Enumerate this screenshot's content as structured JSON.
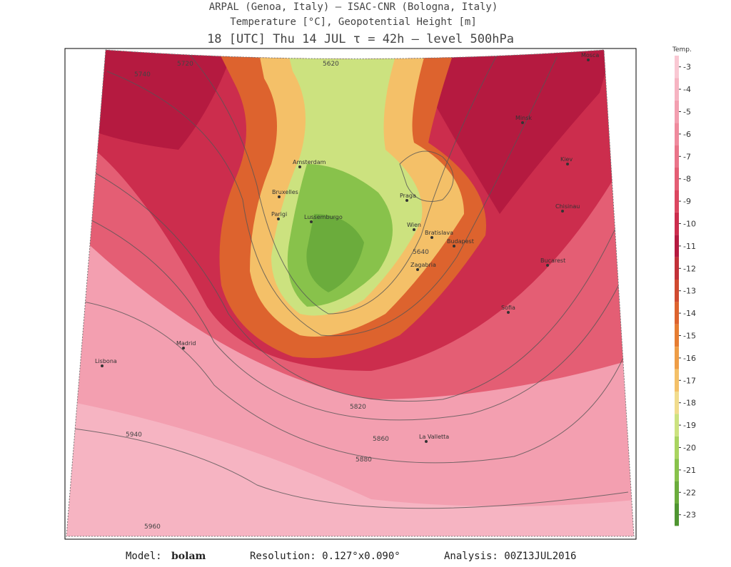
{
  "header": {
    "line1": "ARPAL (Genoa, Italy)  —  ISAC-CNR (Bologna, Italy)",
    "line2": "Temperature [°C], Geopotential Height [m]",
    "line3": "18 [UTC] Thu 14 JUL  τ = 42h  —  level 500hPa"
  },
  "colorbar": {
    "title": "Temp.",
    "levels": [
      {
        "value": -3,
        "color": "#f9c8d3"
      },
      {
        "value": -4,
        "color": "#f6b4c2"
      },
      {
        "value": -5,
        "color": "#f39fb0"
      },
      {
        "value": -6,
        "color": "#ef8a9d"
      },
      {
        "value": -7,
        "color": "#ea7489"
      },
      {
        "value": -8,
        "color": "#e45e74"
      },
      {
        "value": -9,
        "color": "#dc4660"
      },
      {
        "value": -10,
        "color": "#cc2d4d"
      },
      {
        "value": -11,
        "color": "#b51a40"
      },
      {
        "value": -12,
        "color": "#c23138"
      },
      {
        "value": -13,
        "color": "#d04a30"
      },
      {
        "value": -14,
        "color": "#dd632e"
      },
      {
        "value": -15,
        "color": "#e67d32"
      },
      {
        "value": -16,
        "color": "#ee9d46"
      },
      {
        "value": -17,
        "color": "#f4c068"
      },
      {
        "value": -18,
        "color": "#f1dc8d"
      },
      {
        "value": -19,
        "color": "#cce27f"
      },
      {
        "value": -20,
        "color": "#a9d460"
      },
      {
        "value": -21,
        "color": "#88c24b"
      },
      {
        "value": -22,
        "color": "#6bac3c"
      },
      {
        "value": -23,
        "color": "#4f9531"
      }
    ]
  },
  "map": {
    "cities": [
      "Madrid",
      "Lisbona",
      "Parigi",
      "Bruxelles",
      "Amsterdam",
      "Lussemburgo",
      "Praga",
      "Wien",
      "Bratislava",
      "Budapest",
      "Zagabria",
      "Bucarest",
      "Sofia",
      "Chisinau",
      "Kiev",
      "Minsk",
      "Mosca",
      "La Valletta"
    ],
    "contour_labels": [
      "5740",
      "5720",
      "5620",
      "5640",
      "5820",
      "5860",
      "5880",
      "5940",
      "5960"
    ]
  },
  "footer": {
    "model_label": "Model:",
    "model": "bolam",
    "resolution": "Resolution: 0.127°x0.090°",
    "analysis": "Analysis: 00Z13JUL2016"
  }
}
